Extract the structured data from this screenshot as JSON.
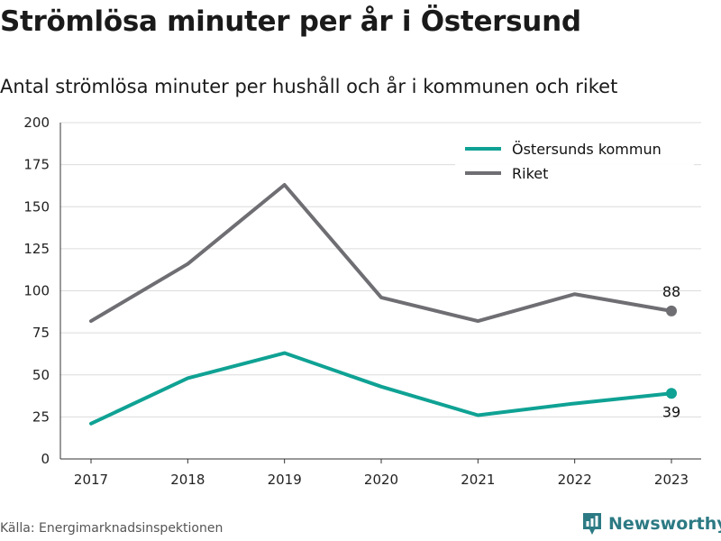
{
  "title": "Strömlösa minuter per år i Östersund",
  "subtitle": "Antal strömlösa minuter per hushåll och år i kommunen och riket",
  "source": "Källa: Energimarknadsinspektionen",
  "brand": {
    "name": "Newsworthy",
    "icon": "newsworthy-logo-icon",
    "color": "#2c7a84"
  },
  "chart_data": {
    "type": "line",
    "x": [
      "2017",
      "2018",
      "2019",
      "2020",
      "2021",
      "2022",
      "2023"
    ],
    "ylim": [
      0,
      200
    ],
    "yticks": [
      "0",
      "25",
      "50",
      "75",
      "100",
      "125",
      "150",
      "175",
      "200"
    ],
    "grid": true,
    "legend_position": "top-right",
    "series": [
      {
        "name": "Östersunds kommun",
        "color": "#0fa294",
        "values": [
          21,
          48,
          63,
          43,
          26,
          33,
          39
        ],
        "end_label": "39",
        "end_label_position": "below"
      },
      {
        "name": "Riket",
        "color": "#6e6e73",
        "values": [
          82,
          116,
          163,
          96,
          82,
          98,
          88
        ],
        "end_label": "88",
        "end_label_position": "above"
      }
    ]
  }
}
